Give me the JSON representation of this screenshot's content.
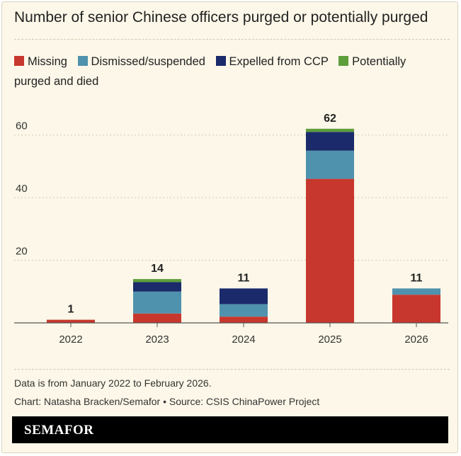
{
  "header": {
    "title": "Number of senior Chinese officers purged or potentially purged"
  },
  "footer": {
    "note": "Data is from January 2022 to February 2026.",
    "credit": "Chart: Natasha Bracken/Semafor • Source: CSIS ChinaPower Project",
    "brand": "SEMAFOR"
  },
  "colors": {
    "background": "#fcf7e8",
    "grid": "#cfc8b4",
    "text": "#222222"
  },
  "chart_data": {
    "type": "bar",
    "stacked": true,
    "title": "Number of senior Chinese officers purged or potentially purged",
    "categories": [
      "2022",
      "2023",
      "2024",
      "2025",
      "2026"
    ],
    "series": [
      {
        "name": "Missing",
        "color": "#c8372d",
        "values": [
          1,
          3,
          2,
          46,
          9
        ]
      },
      {
        "name": "Dismissed/suspended",
        "color": "#4f92ad",
        "values": [
          0,
          7,
          4,
          9,
          2
        ]
      },
      {
        "name": "Expelled from CCP",
        "color": "#1b2a6b",
        "values": [
          0,
          3,
          5,
          6,
          0
        ]
      },
      {
        "name": "Potentially purged and died",
        "color": "#5e9e3b",
        "values": [
          0,
          1,
          0,
          1,
          0
        ]
      }
    ],
    "totals": [
      "1",
      "14",
      "11",
      "62",
      "11"
    ],
    "ylim": [
      0,
      64
    ],
    "yticks": [
      20,
      40,
      60
    ],
    "grid": true,
    "legend_position": "top-left",
    "xlabel": "",
    "ylabel": ""
  }
}
